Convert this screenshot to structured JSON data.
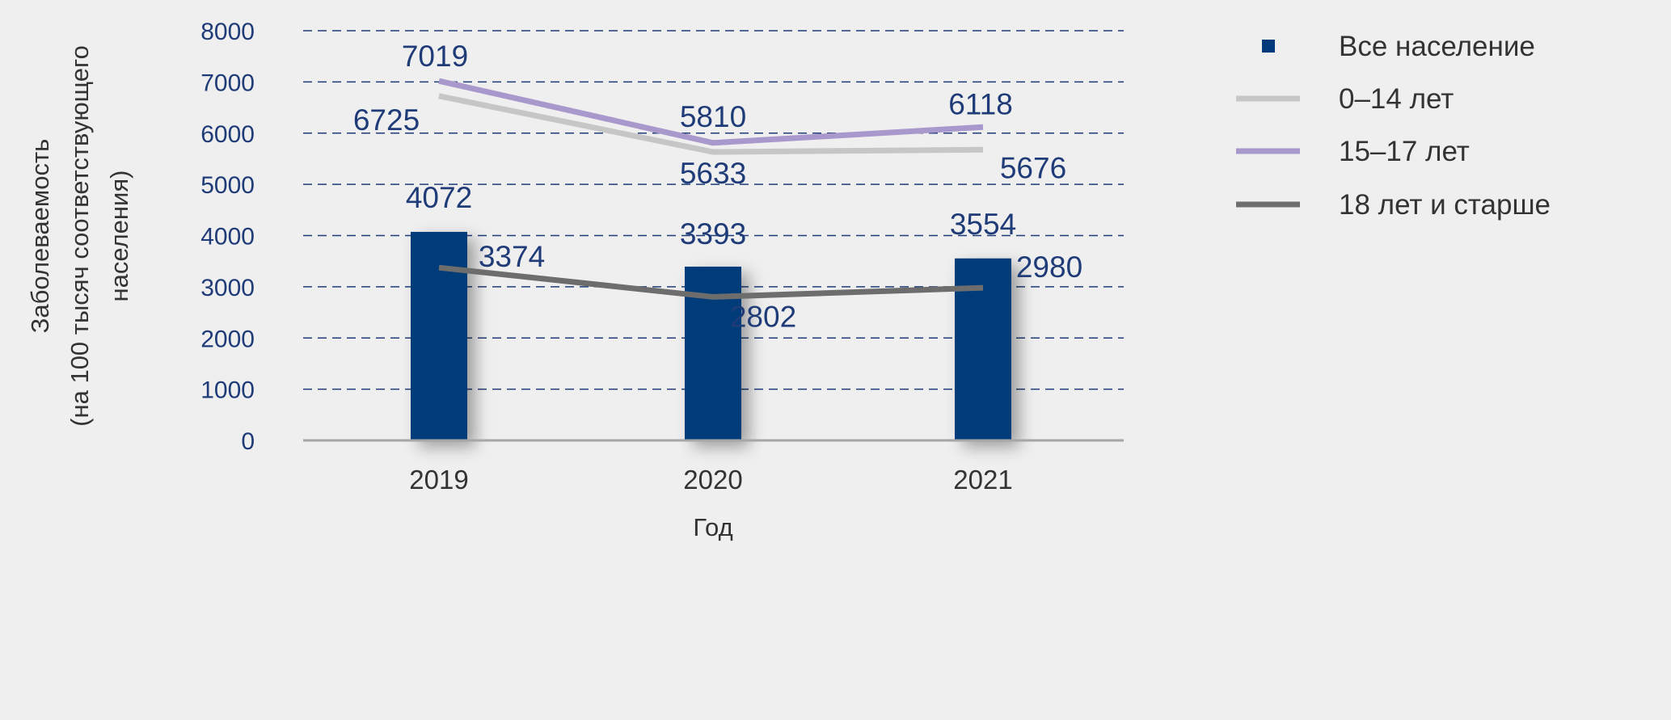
{
  "chart_data": {
    "type": "bar+line",
    "title": "",
    "xlabel": "Год",
    "ylabel_lines": [
      "Заболеваемость",
      "(на 100 тысяч соответствующего",
      "населения)"
    ],
    "categories": [
      "2019",
      "2020",
      "2021"
    ],
    "ylim": [
      0,
      8000
    ],
    "yticks": [
      "0",
      "1000",
      "2000",
      "3000",
      "4000",
      "5000",
      "6000",
      "7000",
      "8000"
    ],
    "grid": true,
    "legend_position": "right",
    "series": [
      {
        "name": "Все население",
        "kind": "bar",
        "color": "#003a7a",
        "values": [
          4072,
          3393,
          3554
        ],
        "labels": [
          "4072",
          "3393",
          "3554"
        ]
      },
      {
        "name": "0–14 лет",
        "kind": "line",
        "color": "#c6c6c6",
        "values": [
          6725,
          5633,
          5676
        ],
        "labels": [
          "6725",
          "5633",
          "5676"
        ]
      },
      {
        "name": "15–17 лет",
        "kind": "line",
        "color": "#a898cc",
        "values": [
          7019,
          5810,
          6118
        ],
        "labels": [
          "7019",
          "5810",
          "6118"
        ]
      },
      {
        "name": "18 лет и старше",
        "kind": "line",
        "color": "#6d6d6d",
        "values": [
          3374,
          2802,
          2980
        ],
        "labels": [
          "3374",
          "2802",
          "2980"
        ]
      }
    ]
  }
}
